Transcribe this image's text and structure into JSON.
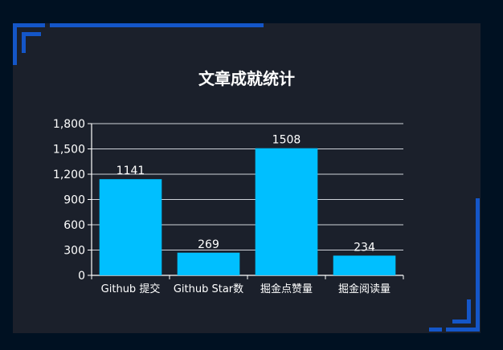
{
  "colors": {
    "background": "#001122",
    "panel": "#1b202b",
    "frame": "#1456c8",
    "bar": "#00bfff",
    "grid": "#cfd3da",
    "text": "#ffffff"
  },
  "chart_data": {
    "type": "bar",
    "title": "文章成就统计",
    "categories": [
      "Github 提交",
      "Github Star数",
      "掘金点赞量",
      "掘金阅读量"
    ],
    "values": [
      1141,
      269,
      1508,
      234
    ],
    "yticks": [
      "0",
      "300",
      "600",
      "900",
      "1,200",
      "1,500",
      "1,800"
    ],
    "ylim": [
      0,
      1800
    ],
    "xlabel": "",
    "ylabel": "",
    "grid": true,
    "data_labels": true
  }
}
